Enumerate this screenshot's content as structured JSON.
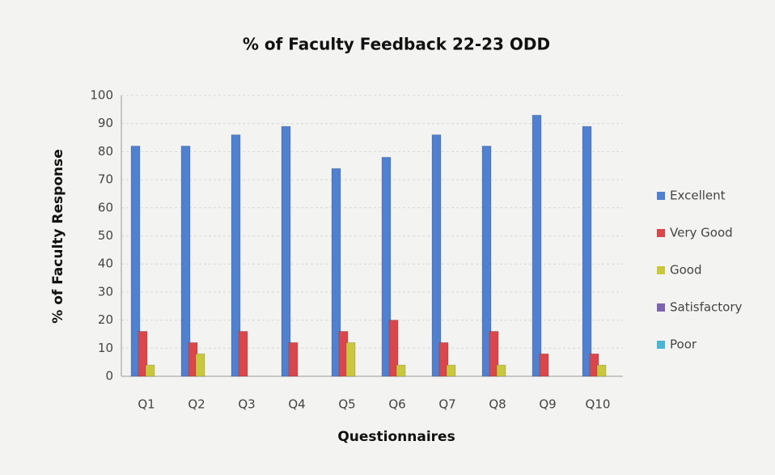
{
  "chart_data": {
    "type": "bar",
    "title": "% of Faculty Feedback 22-23 ODD",
    "x_label": "Questionnaires",
    "y_label": "% of Faculty Response",
    "categories": [
      "Q1",
      "Q2",
      "Q3",
      "Q4",
      "Q5",
      "Q6",
      "Q7",
      "Q8",
      "Q9",
      "Q10"
    ],
    "series": [
      {
        "name": "Excellent",
        "color": "#4f81d0",
        "values": [
          82,
          82,
          86,
          89,
          74,
          78,
          86,
          82,
          93,
          89
        ]
      },
      {
        "name": "Very Good",
        "color": "#d9474a",
        "values": [
          16,
          12,
          16,
          12,
          16,
          20,
          12,
          16,
          8,
          8
        ]
      },
      {
        "name": "Good",
        "color": "#c9c83c",
        "values": [
          4,
          8,
          0,
          0,
          12,
          4,
          4,
          4,
          0,
          4
        ]
      },
      {
        "name": "Satisfactory",
        "color": "#7d63b0",
        "values": [
          0,
          0,
          0,
          0,
          0,
          0,
          0,
          0,
          0,
          0
        ]
      },
      {
        "name": "Poor",
        "color": "#4bb5d6",
        "values": [
          0,
          0,
          0,
          0,
          0,
          0,
          0,
          0,
          0,
          0
        ]
      }
    ],
    "ylim": [
      0,
      100
    ],
    "yticks": [
      0,
      10,
      20,
      30,
      40,
      50,
      60,
      70,
      80,
      90,
      100
    ],
    "grid": true,
    "legend": "right"
  }
}
